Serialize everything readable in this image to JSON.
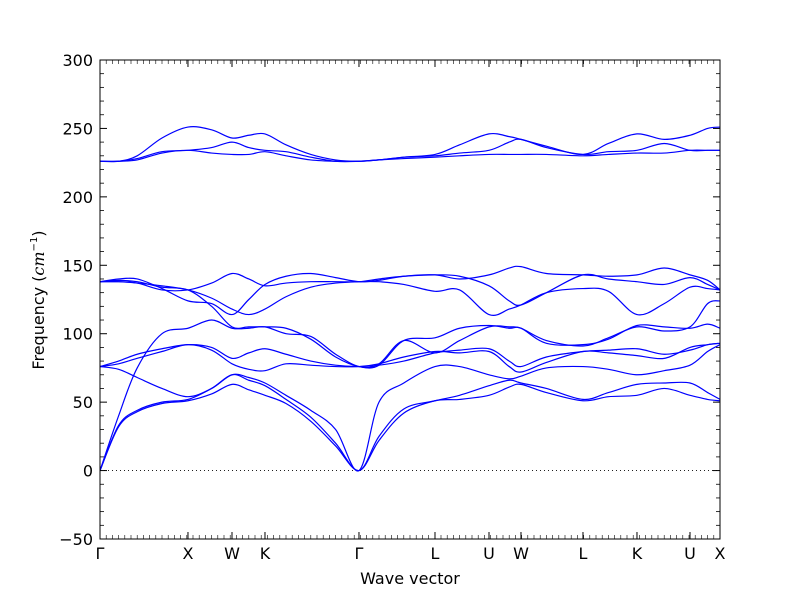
{
  "chart_data": {
    "type": "line",
    "title": "",
    "xlabel": "Wave vector",
    "ylabel": {
      "prefix": "Frequency (",
      "unit_base": "cm",
      "unit_exp": "−1",
      "suffix": ")"
    },
    "ylim": [
      -50,
      300
    ],
    "yticks": [
      -50,
      0,
      50,
      100,
      150,
      200,
      250,
      300
    ],
    "xlim": [
      0,
      1
    ],
    "xticks": [
      {
        "label": "Γ",
        "pos": 0.0
      },
      {
        "label": "X",
        "pos": 0.1419
      },
      {
        "label": "W",
        "pos": 0.2129
      },
      {
        "label": "K",
        "pos": 0.2661
      },
      {
        "label": "Γ",
        "pos": 0.4177
      },
      {
        "label": "L",
        "pos": 0.5403
      },
      {
        "label": "U",
        "pos": 0.6274
      },
      {
        "label": "W",
        "pos": 0.679
      },
      {
        "label": "L",
        "pos": 0.779
      },
      {
        "label": "K",
        "pos": 0.8661
      },
      {
        "label": "U",
        "pos": 0.9516
      },
      {
        "label": "X",
        "pos": 1.0
      }
    ],
    "zero_line": {
      "y": 0,
      "style": "dotted"
    },
    "line_color": "#0000ff",
    "series": [
      {
        "x": [
          0,
          0.03,
          0.06,
          0.1,
          0.1419,
          0.18,
          0.2129,
          0.24,
          0.2661,
          0.3,
          0.34,
          0.38,
          0.4177,
          0.45,
          0.49,
          0.5403,
          0.58,
          0.6274,
          0.66,
          0.679,
          0.72,
          0.779,
          0.82,
          0.8661,
          0.91,
          0.9516,
          0.98,
          1.0
        ],
        "values": [
          0,
          32,
          43,
          49,
          51,
          56,
          63,
          59,
          55,
          49,
          36,
          18,
          0,
          22,
          42,
          51,
          52,
          55,
          61,
          63,
          57,
          51,
          54,
          55,
          60,
          55,
          52,
          51
        ]
      },
      {
        "x": [
          0,
          0.03,
          0.06,
          0.1,
          0.1419,
          0.18,
          0.2129,
          0.24,
          0.2661,
          0.3,
          0.34,
          0.38,
          0.4177,
          0.45,
          0.49,
          0.5403,
          0.58,
          0.6274,
          0.66,
          0.679,
          0.72,
          0.779,
          0.82,
          0.8661,
          0.91,
          0.9516,
          0.98,
          1.0
        ],
        "values": [
          0,
          33,
          44,
          50,
          52,
          60,
          70,
          66,
          62,
          52,
          39,
          20,
          0,
          25,
          45,
          51,
          55,
          62,
          66,
          64,
          60,
          52,
          57,
          63,
          64,
          64,
          57,
          52
        ]
      },
      {
        "x": [
          0,
          0.03,
          0.06,
          0.1,
          0.1419,
          0.18,
          0.2129,
          0.24,
          0.2661,
          0.3,
          0.34,
          0.38,
          0.4177,
          0.45,
          0.49,
          0.5403,
          0.58,
          0.6274,
          0.66,
          0.679,
          0.72,
          0.779,
          0.82,
          0.8661,
          0.91,
          0.9516,
          0.98,
          1.0
        ],
        "values": [
          76,
          74,
          68,
          60,
          54,
          60,
          70,
          68,
          64,
          55,
          44,
          30,
          0,
          50,
          64,
          76,
          76,
          70,
          67,
          69,
          75,
          76,
          74,
          70,
          73,
          77,
          87,
          92
        ]
      },
      {
        "x": [
          0,
          0.03,
          0.06,
          0.1,
          0.1419,
          0.18,
          0.2129,
          0.24,
          0.2661,
          0.3,
          0.34,
          0.38,
          0.4177,
          0.45,
          0.49,
          0.5403,
          0.58,
          0.6274,
          0.66,
          0.679,
          0.72,
          0.779,
          0.82,
          0.8661,
          0.91,
          0.9516,
          0.98,
          1.0
        ],
        "values": [
          76,
          78,
          82,
          87,
          92,
          88,
          78,
          74,
          73,
          78,
          77,
          76,
          76,
          78,
          83,
          87,
          86,
          87,
          76,
          72,
          79,
          87,
          86,
          84,
          82,
          90,
          92,
          93
        ]
      },
      {
        "x": [
          0,
          0.03,
          0.06,
          0.1,
          0.1419,
          0.18,
          0.2129,
          0.24,
          0.2661,
          0.3,
          0.34,
          0.38,
          0.4177,
          0.45,
          0.49,
          0.5403,
          0.58,
          0.6274,
          0.66,
          0.679,
          0.72,
          0.779,
          0.82,
          0.8661,
          0.91,
          0.9516,
          0.98,
          1.0
        ],
        "values": [
          76,
          80,
          85,
          89,
          92,
          90,
          82,
          86,
          89,
          85,
          80,
          77,
          76,
          77,
          80,
          86,
          88,
          89,
          80,
          76,
          83,
          87,
          88,
          89,
          85,
          88,
          92,
          93
        ]
      },
      {
        "x": [
          0,
          0.03,
          0.06,
          0.1,
          0.1419,
          0.18,
          0.2129,
          0.24,
          0.2661,
          0.3,
          0.34,
          0.38,
          0.4177,
          0.45,
          0.49,
          0.5403,
          0.58,
          0.6274,
          0.66,
          0.679,
          0.72,
          0.779,
          0.82,
          0.8661,
          0.91,
          0.9516,
          0.98,
          1.0
        ],
        "values": [
          0,
          40,
          75,
          100,
          104,
          110,
          104,
          104,
          105,
          100,
          98,
          85,
          76,
          78,
          95,
          86,
          95,
          105,
          105,
          104,
          95,
          91,
          97,
          105,
          102,
          105,
          122,
          124
        ]
      },
      {
        "x": [
          0,
          0.03,
          0.06,
          0.1,
          0.1419,
          0.18,
          0.2129,
          0.24,
          0.2661,
          0.3,
          0.34,
          0.38,
          0.4177,
          0.45,
          0.49,
          0.5403,
          0.58,
          0.6274,
          0.66,
          0.679,
          0.72,
          0.779,
          0.82,
          0.8661,
          0.91,
          0.9516,
          0.98,
          1.0
        ],
        "values": [
          138,
          138,
          137,
          135,
          132,
          126,
          118,
          114,
          118,
          127,
          134,
          137,
          138,
          138,
          136,
          131,
          132,
          114,
          118,
          121,
          130,
          133,
          131,
          114,
          122,
          134,
          133,
          132
        ]
      },
      {
        "x": [
          0,
          0.03,
          0.06,
          0.1,
          0.1419,
          0.18,
          0.2129,
          0.24,
          0.2661,
          0.3,
          0.34,
          0.38,
          0.4177,
          0.45,
          0.49,
          0.5403,
          0.58,
          0.6274,
          0.66,
          0.679,
          0.72,
          0.779,
          0.82,
          0.8661,
          0.91,
          0.9516,
          0.98,
          1.0
        ],
        "values": [
          138,
          139,
          138,
          134,
          132,
          120,
          105,
          105,
          105,
          104,
          96,
          83,
          76,
          77,
          95,
          97,
          104,
          106,
          104,
          104,
          93,
          92,
          96,
          106,
          105,
          104,
          107,
          104
        ]
      },
      {
        "x": [
          0,
          0.03,
          0.06,
          0.1,
          0.1419,
          0.18,
          0.2129,
          0.24,
          0.2661,
          0.3,
          0.34,
          0.38,
          0.4177,
          0.45,
          0.49,
          0.5403,
          0.58,
          0.6274,
          0.66,
          0.679,
          0.72,
          0.779,
          0.82,
          0.8661,
          0.91,
          0.9516,
          0.98,
          1.0
        ],
        "values": [
          138,
          138,
          137,
          132,
          132,
          137,
          144,
          140,
          135,
          137,
          138,
          138,
          138,
          140,
          142,
          143,
          142,
          135,
          124,
          121,
          130,
          143,
          140,
          138,
          136,
          141,
          136,
          132
        ]
      },
      {
        "x": [
          0,
          0.03,
          0.06,
          0.1,
          0.1419,
          0.18,
          0.2129,
          0.24,
          0.2661,
          0.3,
          0.34,
          0.38,
          0.4177,
          0.45,
          0.49,
          0.5403,
          0.58,
          0.6274,
          0.66,
          0.679,
          0.72,
          0.779,
          0.82,
          0.8661,
          0.91,
          0.9516,
          0.98,
          1.0
        ],
        "values": [
          138,
          140,
          140,
          133,
          124,
          122,
          114,
          125,
          136,
          142,
          144,
          141,
          138,
          139,
          142,
          143,
          140,
          143,
          148,
          149,
          144,
          143,
          142,
          143,
          148,
          143,
          139,
          132
        ]
      },
      {
        "x": [
          0,
          0.03,
          0.06,
          0.1,
          0.1419,
          0.18,
          0.2129,
          0.24,
          0.2661,
          0.3,
          0.34,
          0.38,
          0.4177,
          0.45,
          0.49,
          0.5403,
          0.58,
          0.6274,
          0.66,
          0.679,
          0.72,
          0.779,
          0.82,
          0.8661,
          0.91,
          0.9516,
          0.98,
          1.0
        ],
        "values": [
          226,
          226,
          227,
          232,
          234,
          232,
          231,
          231,
          233,
          230,
          227,
          226,
          226,
          227,
          228,
          229,
          230,
          231,
          231,
          231,
          231,
          230,
          231,
          232,
          232,
          234,
          234,
          234
        ]
      },
      {
        "x": [
          0,
          0.03,
          0.06,
          0.1,
          0.1419,
          0.18,
          0.2129,
          0.24,
          0.2661,
          0.3,
          0.34,
          0.38,
          0.4177,
          0.45,
          0.49,
          0.5403,
          0.58,
          0.6274,
          0.66,
          0.679,
          0.72,
          0.779,
          0.82,
          0.8661,
          0.91,
          0.9516,
          0.98,
          1.0
        ],
        "values": [
          226,
          226,
          228,
          233,
          234,
          236,
          240,
          236,
          234,
          233,
          229,
          226,
          226,
          227,
          229,
          230,
          232,
          234,
          240,
          242,
          236,
          231,
          233,
          234,
          239,
          234,
          234,
          234
        ]
      },
      {
        "x": [
          0,
          0.03,
          0.06,
          0.1,
          0.1419,
          0.18,
          0.2129,
          0.24,
          0.2661,
          0.3,
          0.34,
          0.38,
          0.4177,
          0.45,
          0.49,
          0.5403,
          0.58,
          0.6274,
          0.66,
          0.679,
          0.72,
          0.779,
          0.82,
          0.8661,
          0.91,
          0.9516,
          0.98,
          1.0
        ],
        "values": [
          226,
          226,
          230,
          243,
          251,
          249,
          243,
          245,
          246,
          238,
          231,
          227,
          226,
          227,
          229,
          231,
          238,
          246,
          244,
          242,
          237,
          231,
          239,
          246,
          242,
          245,
          250,
          251
        ]
      }
    ]
  }
}
